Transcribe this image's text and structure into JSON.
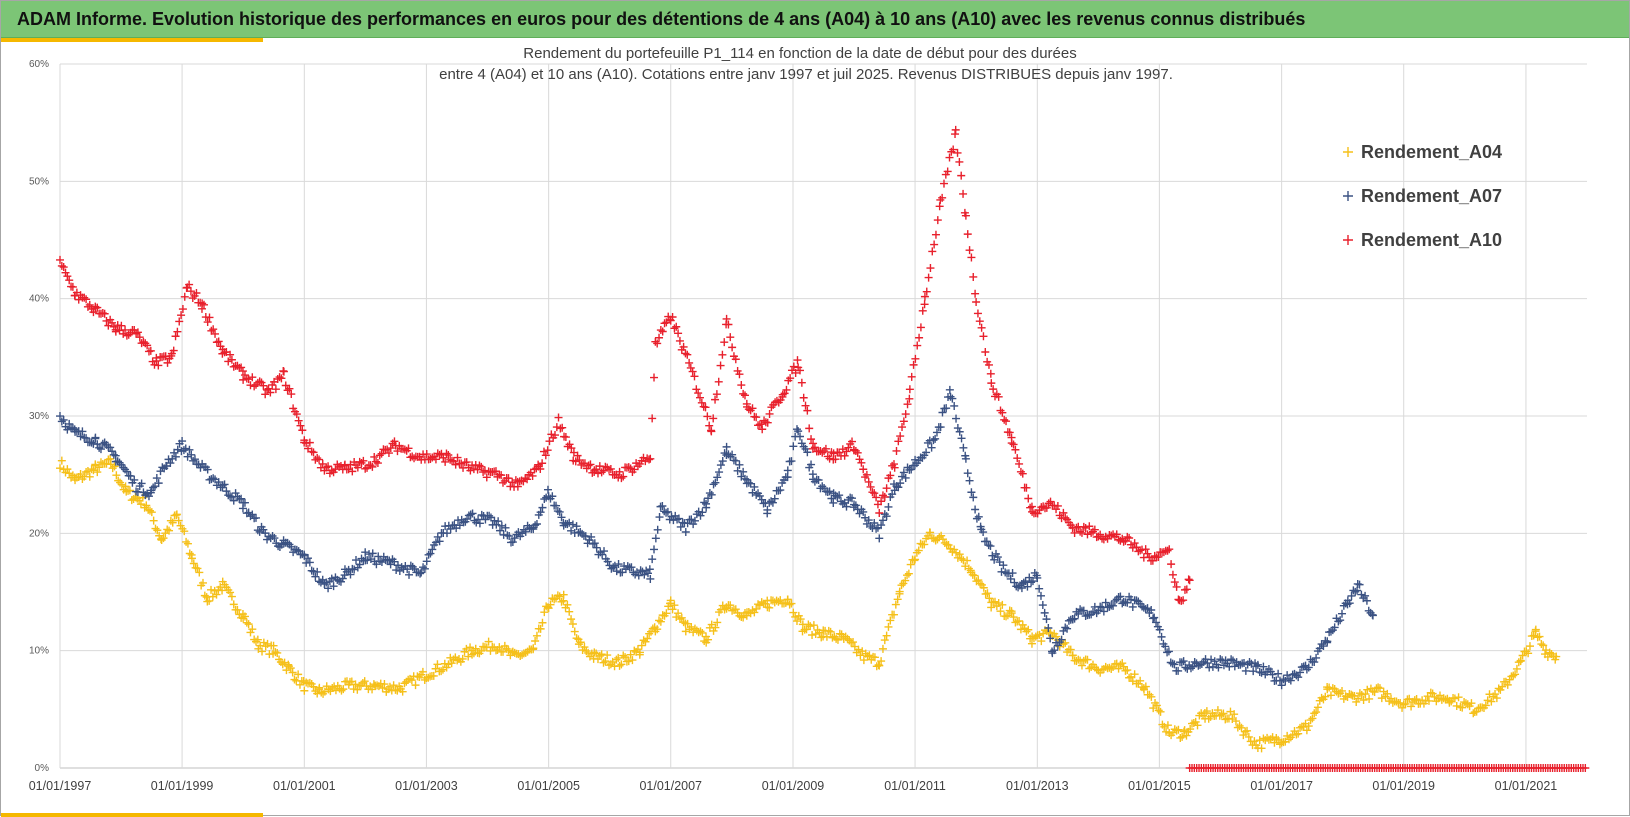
{
  "header": {
    "title": "ADAM Informe. Evolution historique des performances en euros pour des détentions de 4 ans (A04) à 10 ans (A10) avec les revenus connus distribués"
  },
  "colors": {
    "header_bg": "#7cc576",
    "accent": "#f5b800",
    "series_A04": "#f5c01a",
    "series_A07": "#3b5283",
    "series_A10": "#e8202c"
  },
  "chart_data": {
    "type": "scatter",
    "title": "Rendement du portefeuille P1_114 en fonction de la date de début pour des durées",
    "subtitle": "entre 4 (A04) et 10 ans (A10). Cotations entre janv 1997 et juil 2025. Revenus DISTRIBUES depuis janv 1997.",
    "x_axis": {
      "type": "date",
      "range": [
        "1997-01-01",
        "2021-12-31"
      ],
      "ticks": [
        "01/01/1997",
        "01/01/1999",
        "01/01/2001",
        "01/01/2003",
        "01/01/2005",
        "01/01/2007",
        "01/01/2009",
        "01/01/2011",
        "01/01/2013",
        "01/01/2015",
        "01/01/2017",
        "01/01/2019",
        "01/01/2021"
      ]
    },
    "y_axis": {
      "range": [
        0,
        0.6
      ],
      "ticks": [
        "0%",
        "10%",
        "20%",
        "30%",
        "40%",
        "50%",
        "60%"
      ]
    },
    "grid": true,
    "legend_position": "top-right",
    "marker": "plus",
    "series": [
      {
        "name": "Rendement_A04",
        "color": "#f5c01a",
        "x_range": [
          "1997-01-01",
          "2021-07-01"
        ],
        "points": [
          [
            "1997-01-01",
            0.26
          ],
          [
            "1997-04-01",
            0.245
          ],
          [
            "1997-08-01",
            0.255
          ],
          [
            "1997-11-01",
            0.26
          ],
          [
            "1998-02-01",
            0.235
          ],
          [
            "1998-06-01",
            0.225
          ],
          [
            "1998-09-01",
            0.195
          ],
          [
            "1998-12-01",
            0.215
          ],
          [
            "1999-03-01",
            0.18
          ],
          [
            "1999-06-01",
            0.145
          ],
          [
            "1999-09-01",
            0.155
          ],
          [
            "2000-01-01",
            0.13
          ],
          [
            "2000-04-01",
            0.105
          ],
          [
            "2000-07-01",
            0.1
          ],
          [
            "2000-10-01",
            0.085
          ],
          [
            "2001-01-01",
            0.07
          ],
          [
            "2001-04-01",
            0.065
          ],
          [
            "2001-10-01",
            0.07
          ],
          [
            "2002-03-01",
            0.07
          ],
          [
            "2002-08-01",
            0.068
          ],
          [
            "2003-01-01",
            0.08
          ],
          [
            "2003-06-01",
            0.09
          ],
          [
            "2003-10-01",
            0.1
          ],
          [
            "2004-03-01",
            0.105
          ],
          [
            "2004-06-01",
            0.095
          ],
          [
            "2004-10-01",
            0.1
          ],
          [
            "2005-01-01",
            0.14
          ],
          [
            "2005-04-01",
            0.145
          ],
          [
            "2005-07-01",
            0.105
          ],
          [
            "2005-10-01",
            0.095
          ],
          [
            "2006-03-01",
            0.09
          ],
          [
            "2006-07-01",
            0.1
          ],
          [
            "2006-10-01",
            0.12
          ],
          [
            "2007-01-01",
            0.14
          ],
          [
            "2007-04-01",
            0.12
          ],
          [
            "2007-08-01",
            0.11
          ],
          [
            "2007-12-01",
            0.14
          ],
          [
            "2008-04-01",
            0.13
          ],
          [
            "2008-08-01",
            0.14
          ],
          [
            "2008-12-01",
            0.145
          ],
          [
            "2009-03-01",
            0.12
          ],
          [
            "2009-07-01",
            0.115
          ],
          [
            "2009-11-01",
            0.11
          ],
          [
            "2010-03-01",
            0.095
          ],
          [
            "2010-06-01",
            0.09
          ],
          [
            "2010-10-01",
            0.15
          ],
          [
            "2011-01-01",
            0.18
          ],
          [
            "2011-04-01",
            0.2
          ],
          [
            "2011-08-01",
            0.19
          ],
          [
            "2011-12-01",
            0.17
          ],
          [
            "2012-04-01",
            0.14
          ],
          [
            "2012-08-01",
            0.13
          ],
          [
            "2012-12-01",
            0.11
          ],
          [
            "2013-04-01",
            0.115
          ],
          [
            "2013-08-01",
            0.095
          ],
          [
            "2014-01-01",
            0.085
          ],
          [
            "2014-06-01",
            0.085
          ],
          [
            "2014-10-01",
            0.07
          ],
          [
            "2015-03-01",
            0.03
          ],
          [
            "2015-06-01",
            0.03
          ],
          [
            "2015-10-01",
            0.045
          ],
          [
            "2016-03-01",
            0.045
          ],
          [
            "2016-08-01",
            0.02
          ],
          [
            "2017-01-01",
            0.025
          ],
          [
            "2017-06-01",
            0.035
          ],
          [
            "2017-10-01",
            0.065
          ],
          [
            "2018-03-01",
            0.06
          ],
          [
            "2018-08-01",
            0.065
          ],
          [
            "2019-01-01",
            0.055
          ],
          [
            "2019-06-01",
            0.06
          ],
          [
            "2019-10-01",
            0.06
          ],
          [
            "2020-03-01",
            0.05
          ],
          [
            "2020-08-01",
            0.065
          ],
          [
            "2020-12-01",
            0.09
          ],
          [
            "2021-03-01",
            0.115
          ],
          [
            "2021-05-01",
            0.1
          ],
          [
            "2021-07-01",
            0.095
          ]
        ]
      },
      {
        "name": "Rendement_A07",
        "color": "#3b5283",
        "x_range": [
          "1997-01-01",
          "2018-07-01"
        ],
        "points": [
          [
            "1997-01-01",
            0.3
          ],
          [
            "1997-04-01",
            0.285
          ],
          [
            "1997-08-01",
            0.28
          ],
          [
            "1997-12-01",
            0.265
          ],
          [
            "1998-04-01",
            0.24
          ],
          [
            "1998-07-01",
            0.235
          ],
          [
            "1998-10-01",
            0.26
          ],
          [
            "1999-01-01",
            0.275
          ],
          [
            "1999-05-01",
            0.255
          ],
          [
            "1999-09-01",
            0.24
          ],
          [
            "2000-01-01",
            0.225
          ],
          [
            "2000-05-01",
            0.2
          ],
          [
            "2000-09-01",
            0.19
          ],
          [
            "2001-01-01",
            0.18
          ],
          [
            "2001-05-01",
            0.155
          ],
          [
            "2001-09-01",
            0.165
          ],
          [
            "2002-01-01",
            0.18
          ],
          [
            "2002-06-01",
            0.175
          ],
          [
            "2002-12-01",
            0.165
          ],
          [
            "2003-04-01",
            0.2
          ],
          [
            "2003-09-01",
            0.215
          ],
          [
            "2004-02-01",
            0.21
          ],
          [
            "2004-06-01",
            0.195
          ],
          [
            "2004-10-01",
            0.205
          ],
          [
            "2005-01-01",
            0.235
          ],
          [
            "2005-04-01",
            0.21
          ],
          [
            "2005-09-01",
            0.195
          ],
          [
            "2006-02-01",
            0.17
          ],
          [
            "2006-09-01",
            0.165
          ],
          [
            "2006-11-01",
            0.22
          ],
          [
            "2007-04-01",
            0.205
          ],
          [
            "2007-08-01",
            0.225
          ],
          [
            "2007-12-01",
            0.27
          ],
          [
            "2008-04-01",
            0.245
          ],
          [
            "2008-08-01",
            0.22
          ],
          [
            "2008-12-01",
            0.25
          ],
          [
            "2009-02-01",
            0.29
          ],
          [
            "2009-05-01",
            0.25
          ],
          [
            "2009-09-01",
            0.23
          ],
          [
            "2010-01-01",
            0.225
          ],
          [
            "2010-06-01",
            0.2
          ],
          [
            "2010-09-01",
            0.24
          ],
          [
            "2011-01-01",
            0.26
          ],
          [
            "2011-05-01",
            0.28
          ],
          [
            "2011-08-01",
            0.32
          ],
          [
            "2011-11-01",
            0.26
          ],
          [
            "2012-02-01",
            0.2
          ],
          [
            "2012-06-01",
            0.17
          ],
          [
            "2012-10-01",
            0.155
          ],
          [
            "2013-01-01",
            0.165
          ],
          [
            "2013-04-01",
            0.1
          ],
          [
            "2013-08-01",
            0.13
          ],
          [
            "2014-01-01",
            0.135
          ],
          [
            "2014-06-01",
            0.145
          ],
          [
            "2014-12-01",
            0.13
          ],
          [
            "2015-04-01",
            0.085
          ],
          [
            "2015-09-01",
            0.09
          ],
          [
            "2016-02-01",
            0.09
          ],
          [
            "2016-08-01",
            0.085
          ],
          [
            "2017-01-01",
            0.075
          ],
          [
            "2017-06-01",
            0.085
          ],
          [
            "2017-10-01",
            0.11
          ],
          [
            "2018-02-01",
            0.14
          ],
          [
            "2018-04-01",
            0.155
          ],
          [
            "2018-07-01",
            0.13
          ]
        ]
      },
      {
        "name": "Rendement_A10",
        "color": "#e8202c",
        "x_range": [
          "1997-01-01",
          "2015-07-01"
        ],
        "after_note": "plotted at 0% from 2015-07 to 2021-12",
        "points": [
          [
            "1997-01-01",
            0.43
          ],
          [
            "1997-04-01",
            0.405
          ],
          [
            "1997-08-01",
            0.39
          ],
          [
            "1997-12-01",
            0.375
          ],
          [
            "1998-04-01",
            0.37
          ],
          [
            "1998-08-01",
            0.345
          ],
          [
            "1998-11-01",
            0.35
          ],
          [
            "1999-02-01",
            0.41
          ],
          [
            "1999-05-01",
            0.395
          ],
          [
            "1999-09-01",
            0.355
          ],
          [
            "2000-01-01",
            0.335
          ],
          [
            "2000-06-01",
            0.32
          ],
          [
            "2000-09-01",
            0.335
          ],
          [
            "2001-01-01",
            0.28
          ],
          [
            "2001-05-01",
            0.255
          ],
          [
            "2001-09-01",
            0.255
          ],
          [
            "2002-02-01",
            0.26
          ],
          [
            "2002-07-01",
            0.275
          ],
          [
            "2002-12-01",
            0.265
          ],
          [
            "2003-05-01",
            0.265
          ],
          [
            "2003-10-01",
            0.255
          ],
          [
            "2004-03-01",
            0.25
          ],
          [
            "2004-07-01",
            0.24
          ],
          [
            "2004-11-01",
            0.255
          ],
          [
            "2005-03-01",
            0.295
          ],
          [
            "2005-06-01",
            0.265
          ],
          [
            "2005-10-01",
            0.255
          ],
          [
            "2006-03-01",
            0.25
          ],
          [
            "2006-09-01",
            0.265
          ],
          [
            "2006-10-01",
            0.36
          ],
          [
            "2007-01-01",
            0.385
          ],
          [
            "2007-05-01",
            0.34
          ],
          [
            "2007-09-01",
            0.29
          ],
          [
            "2007-12-01",
            0.38
          ],
          [
            "2008-04-01",
            0.31
          ],
          [
            "2008-07-01",
            0.29
          ],
          [
            "2008-11-01",
            0.32
          ],
          [
            "2009-02-01",
            0.345
          ],
          [
            "2009-05-01",
            0.275
          ],
          [
            "2009-09-01",
            0.265
          ],
          [
            "2010-01-01",
            0.275
          ],
          [
            "2010-06-01",
            0.22
          ],
          [
            "2010-09-01",
            0.26
          ],
          [
            "2010-12-01",
            0.32
          ],
          [
            "2011-03-01",
            0.4
          ],
          [
            "2011-06-01",
            0.48
          ],
          [
            "2011-09-01",
            0.54
          ],
          [
            "2011-11-01",
            0.47
          ],
          [
            "2012-01-01",
            0.4
          ],
          [
            "2012-04-01",
            0.33
          ],
          [
            "2012-08-01",
            0.28
          ],
          [
            "2012-12-01",
            0.22
          ],
          [
            "2013-04-01",
            0.225
          ],
          [
            "2013-08-01",
            0.205
          ],
          [
            "2014-01-01",
            0.2
          ],
          [
            "2014-06-01",
            0.195
          ],
          [
            "2014-11-01",
            0.18
          ],
          [
            "2015-03-01",
            0.185
          ],
          [
            "2015-05-01",
            0.14
          ],
          [
            "2015-07-01",
            0.16
          ]
        ],
        "zero_range": [
          "2015-07-01",
          "2021-12-31"
        ]
      }
    ]
  }
}
